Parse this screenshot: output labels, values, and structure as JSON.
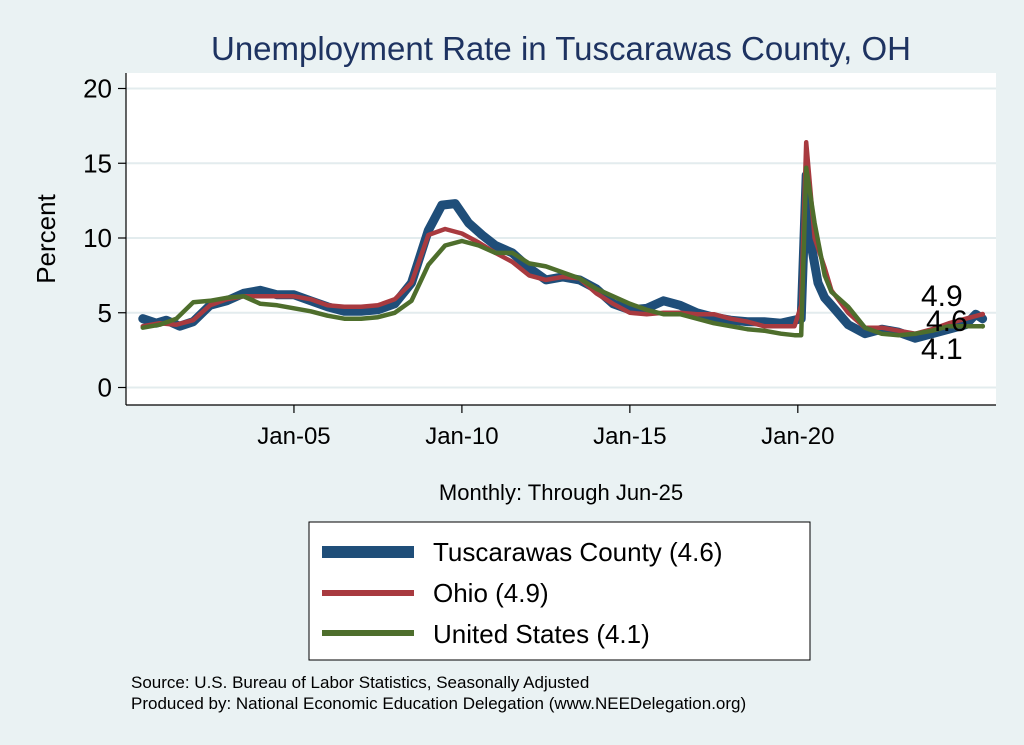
{
  "chart_data": {
    "type": "line",
    "title": "Unemployment Rate in Tuscarawas  County, OH",
    "ylabel": "Percent",
    "xlabel": "Monthly: Through Jun-25",
    "ylim": [
      0,
      20
    ],
    "yticks": [
      0,
      5,
      10,
      15,
      20
    ],
    "xlim": [
      2000.0,
      2025.9
    ],
    "xticks": [
      {
        "label": "Jan-05",
        "value": 2005.0
      },
      {
        "label": "Jan-10",
        "value": 2010.0
      },
      {
        "label": "Jan-15",
        "value": 2015.0
      },
      {
        "label": "Jan-20",
        "value": 2020.0
      }
    ],
    "grid": true,
    "series": [
      {
        "name": "Tuscarawas  County (4.6)",
        "color": "#1f4e79",
        "last": "4.6",
        "x": [
          2000.5,
          2000.9,
          2001.2,
          2001.6,
          2002.0,
          2002.5,
          2003.0,
          2003.5,
          2004.0,
          2004.5,
          2005.0,
          2005.5,
          2006.0,
          2006.5,
          2007.0,
          2007.5,
          2008.0,
          2008.5,
          2009.0,
          2009.4,
          2009.8,
          2010.2,
          2010.6,
          2011.0,
          2011.5,
          2012.0,
          2012.5,
          2013.0,
          2013.5,
          2014.0,
          2014.5,
          2015.0,
          2015.5,
          2016.0,
          2016.5,
          2017.0,
          2017.5,
          2018.0,
          2018.5,
          2019.0,
          2019.5,
          2019.9,
          2020.1,
          2020.25,
          2020.4,
          2020.6,
          2020.8,
          2021.0,
          2021.5,
          2022.0,
          2022.5,
          2023.0,
          2023.5,
          2024.0,
          2024.5,
          2025.0,
          2025.3,
          2025.5
        ],
        "values": [
          4.6,
          4.3,
          4.5,
          4.1,
          4.4,
          5.5,
          5.8,
          6.3,
          6.5,
          6.2,
          6.2,
          5.8,
          5.4,
          5.1,
          5.1,
          5.2,
          5.6,
          7.0,
          10.5,
          12.2,
          12.3,
          11.0,
          10.2,
          9.5,
          9.0,
          8.0,
          7.2,
          7.4,
          7.2,
          6.6,
          5.6,
          5.2,
          5.3,
          5.8,
          5.5,
          5.0,
          4.7,
          4.5,
          4.4,
          4.4,
          4.3,
          4.5,
          4.6,
          14.2,
          9.5,
          7.0,
          6.0,
          5.5,
          4.2,
          3.6,
          3.9,
          3.7,
          3.3,
          3.6,
          3.9,
          4.2,
          4.9,
          4.6
        ]
      },
      {
        "name": "Ohio (4.9)",
        "color": "#a83a3f",
        "last": "4.9",
        "x": [
          2000.5,
          2001.0,
          2001.5,
          2002.0,
          2002.5,
          2003.0,
          2003.5,
          2004.0,
          2004.5,
          2005.0,
          2005.5,
          2006.0,
          2006.5,
          2007.0,
          2007.5,
          2008.0,
          2008.5,
          2009.0,
          2009.5,
          2010.0,
          2010.5,
          2011.0,
          2011.5,
          2012.0,
          2012.5,
          2013.0,
          2013.5,
          2014.0,
          2014.5,
          2015.0,
          2015.5,
          2016.0,
          2016.5,
          2017.0,
          2017.5,
          2018.0,
          2018.5,
          2019.0,
          2019.5,
          2019.9,
          2020.1,
          2020.25,
          2020.5,
          2020.8,
          2021.0,
          2021.5,
          2022.0,
          2022.5,
          2023.0,
          2023.5,
          2024.0,
          2024.5,
          2025.0,
          2025.5
        ],
        "values": [
          4.1,
          4.3,
          4.2,
          4.5,
          5.5,
          5.9,
          6.1,
          6.1,
          6.1,
          6.1,
          5.9,
          5.5,
          5.4,
          5.4,
          5.5,
          5.9,
          7.0,
          10.2,
          10.6,
          10.3,
          9.7,
          9.0,
          8.4,
          7.5,
          7.2,
          7.4,
          7.3,
          6.3,
          5.6,
          5.0,
          4.9,
          5.0,
          5.0,
          4.9,
          4.9,
          4.6,
          4.4,
          4.1,
          4.1,
          4.1,
          5.5,
          16.4,
          10.0,
          8.0,
          6.5,
          5.0,
          4.0,
          4.0,
          3.8,
          3.6,
          3.9,
          4.3,
          4.6,
          4.9
        ]
      },
      {
        "name": "United States (4.1)",
        "color": "#4e6e2c",
        "last": "4.1",
        "x": [
          2000.5,
          2001.0,
          2001.5,
          2002.0,
          2002.5,
          2003.0,
          2003.5,
          2004.0,
          2004.5,
          2005.0,
          2005.5,
          2006.0,
          2006.5,
          2007.0,
          2007.5,
          2008.0,
          2008.5,
          2009.0,
          2009.5,
          2010.0,
          2010.5,
          2011.0,
          2011.5,
          2012.0,
          2012.5,
          2013.0,
          2013.5,
          2014.0,
          2014.5,
          2015.0,
          2015.5,
          2016.0,
          2016.5,
          2017.0,
          2017.5,
          2018.0,
          2018.5,
          2019.0,
          2019.5,
          2019.9,
          2020.1,
          2020.25,
          2020.5,
          2020.8,
          2021.0,
          2021.5,
          2022.0,
          2022.5,
          2023.0,
          2023.5,
          2024.0,
          2024.5,
          2025.0,
          2025.5
        ],
        "values": [
          4.0,
          4.2,
          4.6,
          5.7,
          5.8,
          6.0,
          6.1,
          5.6,
          5.5,
          5.3,
          5.1,
          4.8,
          4.6,
          4.6,
          4.7,
          5.0,
          5.8,
          8.2,
          9.5,
          9.8,
          9.5,
          9.0,
          9.0,
          8.3,
          8.1,
          7.7,
          7.3,
          6.6,
          6.1,
          5.6,
          5.2,
          4.9,
          4.9,
          4.6,
          4.3,
          4.1,
          3.9,
          3.8,
          3.6,
          3.5,
          3.5,
          14.7,
          11.0,
          7.5,
          6.4,
          5.4,
          4.0,
          3.6,
          3.5,
          3.6,
          3.8,
          4.1,
          4.1,
          4.1
        ]
      }
    ],
    "end_labels": [
      "4.9",
      "4.6",
      "4.1"
    ]
  },
  "footer": {
    "source": "Source: U.S. Bureau of Labor Statistics, Seasonally Adjusted",
    "produced": "Produced by: National Economic Education Delegation (www.NEEDelegation.org)"
  }
}
